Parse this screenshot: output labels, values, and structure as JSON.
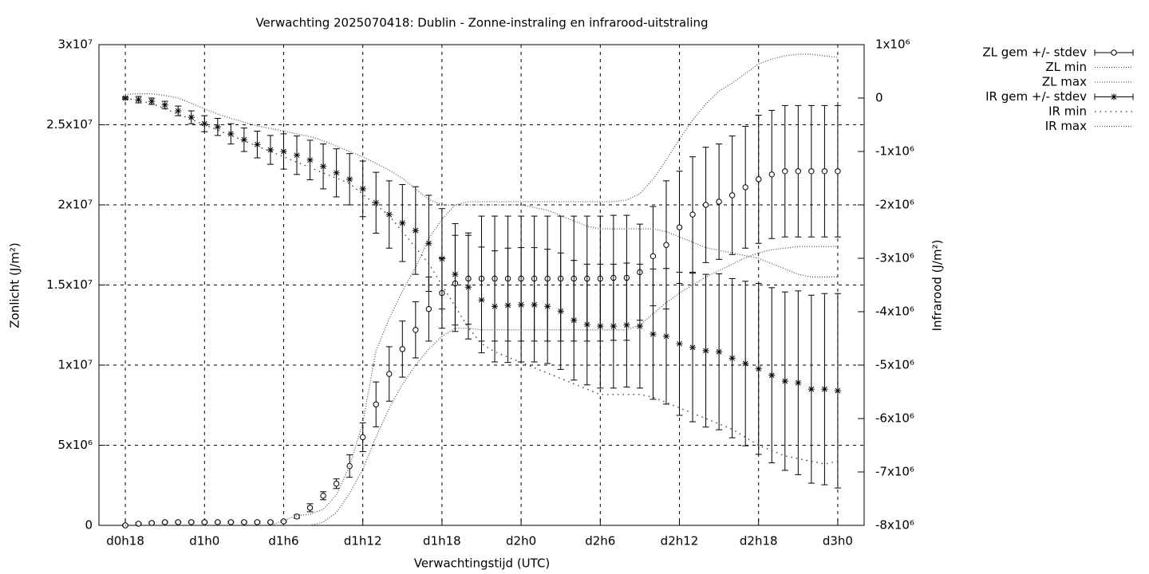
{
  "chart_data": {
    "type": "errorbar-line",
    "title": "Verwachting 2025070418: Dublin - Zonne-instraling en infrarood-uitstraling",
    "x_label": "Verwachtingstijd (UTC)",
    "y_label": "Zonlicht (J/m²)",
    "y2_label": "Infrarood (J/m²)",
    "x": [
      18,
      19,
      20,
      21,
      22,
      23,
      24,
      25,
      26,
      27,
      28,
      29,
      30,
      31,
      32,
      33,
      34,
      35,
      36,
      37,
      38,
      39,
      40,
      41,
      42,
      43,
      44,
      45,
      46,
      47,
      48,
      49,
      50,
      51,
      52,
      53,
      54,
      55,
      56,
      57,
      58,
      59,
      60,
      61,
      62,
      63,
      64,
      65,
      66,
      67,
      68,
      69,
      70,
      71,
      72
    ],
    "xlim": [
      16,
      74
    ],
    "xticks": [
      {
        "value": 18,
        "label": "d0h18"
      },
      {
        "value": 24,
        "label": "d1h0"
      },
      {
        "value": 30,
        "label": "d1h6"
      },
      {
        "value": 36,
        "label": "d1h12"
      },
      {
        "value": 42,
        "label": "d1h18"
      },
      {
        "value": 48,
        "label": "d2h0"
      },
      {
        "value": 54,
        "label": "d2h6"
      },
      {
        "value": 60,
        "label": "d2h12"
      },
      {
        "value": 66,
        "label": "d2h18"
      },
      {
        "value": 72,
        "label": "d3h0"
      }
    ],
    "ylim": [
      0,
      30000000.0
    ],
    "yticks": [
      0,
      {
        "value": 5000000.0,
        "label": "5x10⁶"
      },
      {
        "value": 10000000.0,
        "label": "1x10⁷"
      },
      {
        "value": 15000000.0,
        "label": "1.5x10⁷"
      },
      {
        "value": 20000000.0,
        "label": "2x10⁷"
      },
      {
        "value": 25000000.0,
        "label": "2.5x10⁷"
      },
      {
        "value": 30000000.0,
        "label": "3x10⁷"
      }
    ],
    "y2lim": [
      -8000000.0,
      1000000.0
    ],
    "y2ticks": [
      {
        "value": -8000000.0,
        "label": "-8x10⁶"
      },
      {
        "value": -7000000.0,
        "label": "-7x10⁶"
      },
      {
        "value": -6000000.0,
        "label": "-6x10⁶"
      },
      {
        "value": -5000000.0,
        "label": "-5x10⁶"
      },
      {
        "value": -4000000.0,
        "label": "-4x10⁶"
      },
      {
        "value": -3000000.0,
        "label": "-3x10⁶"
      },
      {
        "value": -2000000.0,
        "label": "-2x10⁶"
      },
      {
        "value": -1000000.0,
        "label": "-1x10⁶"
      },
      0,
      {
        "value": 1000000.0,
        "label": "1x10⁶"
      }
    ],
    "grid": true,
    "legend": "outside-top-right",
    "series": [
      {
        "name": "ZL gem +/- stdev",
        "color": "#000000",
        "marker": "circle",
        "values": [
          0,
          100000.0,
          150000.0,
          200000.0,
          200000.0,
          200000.0,
          200000.0,
          200000.0,
          200000.0,
          200000.0,
          200000.0,
          200000.0,
          250000.0,
          550000.0,
          1100000.0,
          1850000.0,
          2600000.0,
          3700000.0,
          5500000.0,
          7550000.0,
          9450000.0,
          11000000.0,
          12200000.0,
          13500000.0,
          14500000.0,
          15100000.0,
          15400000.0,
          15400000.0,
          15400000.0,
          15400000.0,
          15400000.0,
          15400000.0,
          15400000.0,
          15400000.0,
          15400000.0,
          15400000.0,
          15400000.0,
          15450000.0,
          15450000.0,
          15800000.0,
          16800000.0,
          17500000.0,
          18600000.0,
          19400000.0,
          20000000.0,
          20200000.0,
          20600000.0,
          21100000.0,
          21600000.0,
          21900000.0,
          22100000.0,
          22100000.0,
          22100000.0,
          22100000.0,
          22100000.0
        ],
        "errors": [
          50000.0,
          50000.0,
          50000.0,
          50000.0,
          50000.0,
          50000.0,
          50000.0,
          50000.0,
          50000.0,
          50000.0,
          50000.0,
          50000.0,
          50000.0,
          100000.0,
          250000.0,
          250000.0,
          300000.0,
          700000.0,
          900000.0,
          1400000.0,
          1700000.0,
          1750000.0,
          1750000.0,
          2000000.0,
          2200000.0,
          3000000.0,
          2850000.0,
          3900000.0,
          3900000.0,
          3900000.0,
          3900000.0,
          3900000.0,
          3900000.0,
          3900000.0,
          3900000.0,
          3900000.0,
          3900000.0,
          3900000.0,
          3900000.0,
          3000000.0,
          3100000.0,
          4000000.0,
          3500000.0,
          3600000.0,
          3600000.0,
          3600000.0,
          3700000.0,
          3800000.0,
          4000000.0,
          4000000.0,
          4100000.0,
          4100000.0,
          4100000.0,
          4100000.0,
          4100000.0
        ]
      },
      {
        "name": "ZL min",
        "color": "#555555",
        "line": "dotted",
        "values": [
          0,
          0,
          0,
          0,
          0,
          0,
          0,
          0,
          0,
          0,
          0,
          0,
          0,
          0,
          0,
          200000.0,
          800000.0,
          2000000.0,
          3500000.0,
          5500000.0,
          7300000.0,
          8800000.0,
          10000000.0,
          11000000.0,
          11800000.0,
          12300000.0,
          12300000.0,
          12200000.0,
          12200000.0,
          12200000.0,
          12200000.0,
          12200000.0,
          12200000.0,
          12200000.0,
          12200000.0,
          12200000.0,
          12200000.0,
          12200000.0,
          12200000.0,
          12500000.0,
          13200000.0,
          13900000.0,
          14500000.0,
          15000000.0,
          15500000.0,
          15900000.0,
          16300000.0,
          16700000.0,
          17000000.0,
          17200000.0,
          17300000.0,
          17400000.0,
          17400000.0,
          17400000.0,
          17400000.0
        ]
      },
      {
        "name": "ZL max",
        "color": "#555555",
        "line": "dotted",
        "values": [
          0,
          0,
          0,
          0,
          0,
          0,
          0,
          0,
          0,
          0,
          0,
          0,
          300000.0,
          600000.0,
          700000.0,
          1000000.0,
          1900000.0,
          3700000.0,
          6400000.0,
          10900000.0,
          12900000.0,
          14600000.0,
          16100000.0,
          17900000.0,
          19100000.0,
          20000000.0,
          20200000.0,
          20200000.0,
          20200000.0,
          20200000.0,
          20200000.0,
          20200000.0,
          20200000.0,
          20200000.0,
          20200000.0,
          20200000.0,
          20200000.0,
          20200000.0,
          20300000.0,
          20700000.0,
          21600000.0,
          22800000.0,
          24100000.0,
          25300000.0,
          26300000.0,
          27100000.0,
          27600000.0,
          28200000.0,
          28800000.0,
          29100000.0,
          29300000.0,
          29400000.0,
          29400000.0,
          29300000.0,
          29200000.0
        ]
      },
      {
        "name": "IR gem +/- stdev",
        "color": "#000000",
        "marker": "asterisk",
        "axis": "y2",
        "values": [
          0,
          -30000.0,
          -60000.0,
          -130000.0,
          -240000.0,
          -360000.0,
          -480000.0,
          -540000.0,
          -670000.0,
          -780000.0,
          -870000.0,
          -970000.0,
          -1000000.0,
          -1070000.0,
          -1160000.0,
          -1280000.0,
          -1400000.0,
          -1520000.0,
          -1700000.0,
          -1960000.0,
          -2180000.0,
          -2340000.0,
          -2480000.0,
          -2720000.0,
          -3010000.0,
          -3300000.0,
          -3540000.0,
          -3780000.0,
          -3900000.0,
          -3880000.0,
          -3870000.0,
          -3870000.0,
          -3900000.0,
          -3990000.0,
          -4160000.0,
          -4240000.0,
          -4270000.0,
          -4270000.0,
          -4250000.0,
          -4270000.0,
          -4420000.0,
          -4460000.0,
          -4600000.0,
          -4670000.0,
          -4730000.0,
          -4750000.0,
          -4870000.0,
          -4970000.0,
          -5070000.0,
          -5190000.0,
          -5300000.0,
          -5330000.0,
          -5450000.0,
          -5450000.0,
          -5480000.0
        ],
        "errors": [
          20000.0,
          60000.0,
          60000.0,
          70000.0,
          90000.0,
          120000.0,
          150000.0,
          160000.0,
          190000.0,
          220000.0,
          250000.0,
          270000.0,
          330000.0,
          360000.0,
          370000.0,
          420000.0,
          450000.0,
          480000.0,
          520000.0,
          570000.0,
          630000.0,
          720000.0,
          820000.0,
          900000.0,
          940000.0,
          950000.0,
          970000.0,
          990000.0,
          1040000.0,
          1070000.0,
          1070000.0,
          1070000.0,
          1070000.0,
          1090000.0,
          1120000.0,
          1130000.0,
          1160000.0,
          1160000.0,
          1160000.0,
          1160000.0,
          1220000.0,
          1270000.0,
          1340000.0,
          1390000.0,
          1430000.0,
          1460000.0,
          1490000.0,
          1540000.0,
          1600000.0,
          1640000.0,
          1670000.0,
          1720000.0,
          1760000.0,
          1790000.0,
          1820000.0
        ]
      },
      {
        "name": "IR min",
        "color": "#333333",
        "line": "dotted-sparse",
        "axis": "y2",
        "values": [
          0,
          -50000.0,
          -100000.0,
          -200000.0,
          -300000.0,
          -400000.0,
          -500000.0,
          -600000.0,
          -700000.0,
          -800000.0,
          -900000.0,
          -1000000.0,
          -1100000.0,
          -1200000.0,
          -1300000.0,
          -1400000.0,
          -1500000.0,
          -1600000.0,
          -1800000.0,
          -2000000.0,
          -2200000.0,
          -2500000.0,
          -2800000.0,
          -3100000.0,
          -3500000.0,
          -3900000.0,
          -4300000.0,
          -4600000.0,
          -4750000.0,
          -4850000.0,
          -4950000.0,
          -5050000.0,
          -5150000.0,
          -5250000.0,
          -5350000.0,
          -5450000.0,
          -5550000.0,
          -5550000.0,
          -5550000.0,
          -5550000.0,
          -5600000.0,
          -5700000.0,
          -5800000.0,
          -5900000.0,
          -6000000.0,
          -6100000.0,
          -6200000.0,
          -6350000.0,
          -6500000.0,
          -6600000.0,
          -6700000.0,
          -6750000.0,
          -6800000.0,
          -6850000.0,
          -6800000.0
        ]
      },
      {
        "name": "IR max",
        "color": "#555555",
        "line": "dotted",
        "axis": "y2",
        "values": [
          70000.0,
          80000.0,
          80000.0,
          50000.0,
          0,
          -100000.0,
          -200000.0,
          -300000.0,
          -380000.0,
          -450000.0,
          -520000.0,
          -570000.0,
          -620000.0,
          -670000.0,
          -720000.0,
          -800000.0,
          -900000.0,
          -1000000.0,
          -1100000.0,
          -1220000.0,
          -1350000.0,
          -1500000.0,
          -1700000.0,
          -1900000.0,
          -2000000.0,
          -2000000.0,
          -2000000.0,
          -2000000.0,
          -2000000.0,
          -2000000.0,
          -2000000.0,
          -2050000.0,
          -2100000.0,
          -2200000.0,
          -2300000.0,
          -2400000.0,
          -2450000.0,
          -2450000.0,
          -2450000.0,
          -2450000.0,
          -2450000.0,
          -2500000.0,
          -2600000.0,
          -2700000.0,
          -2800000.0,
          -2850000.0,
          -2900000.0,
          -2950000.0,
          -3000000.0,
          -3100000.0,
          -3200000.0,
          -3300000.0,
          -3350000.0,
          -3350000.0,
          -3350000.0
        ]
      }
    ]
  }
}
